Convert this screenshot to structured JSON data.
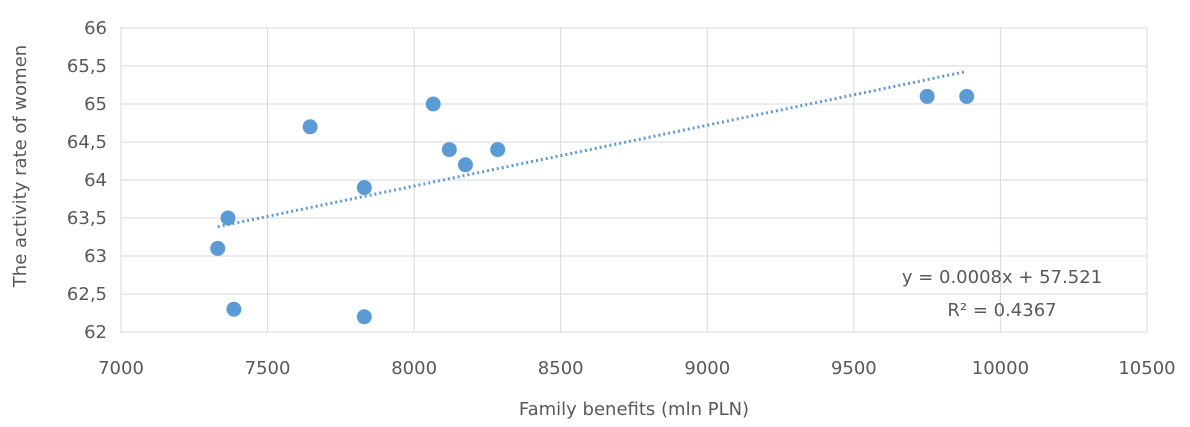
{
  "chart_data": {
    "type": "scatter",
    "title": "",
    "xlabel": "Family benefits (mln PLN)",
    "ylabel": "The activity rate of women",
    "xlim": [
      7000,
      10500
    ],
    "ylim": [
      62,
      66
    ],
    "x_ticks": [
      7000,
      7500,
      8000,
      8500,
      9000,
      9500,
      10000,
      10500
    ],
    "y_ticks": [
      62,
      62.5,
      63,
      63.5,
      64,
      64.5,
      65,
      65.5,
      66
    ],
    "x_tick_labels": [
      "7000",
      "7500",
      "8000",
      "8500",
      "9000",
      "9500",
      "10000",
      "10500"
    ],
    "y_tick_labels": [
      "62",
      "62,5",
      "63",
      "63,5",
      "64",
      "64,5",
      "65",
      "65,5",
      "66"
    ],
    "grid": "vertical and horizontal",
    "legend": "none",
    "series": [
      {
        "color": "#5b9bd5",
        "points": [
          {
            "x": 7330,
            "y": 63.1
          },
          {
            "x": 7365,
            "y": 63.5
          },
          {
            "x": 7385,
            "y": 62.3
          },
          {
            "x": 7645,
            "y": 64.7
          },
          {
            "x": 7830,
            "y": 63.9
          },
          {
            "x": 7830,
            "y": 62.2
          },
          {
            "x": 8065,
            "y": 65.0
          },
          {
            "x": 8120,
            "y": 64.4
          },
          {
            "x": 8175,
            "y": 64.2
          },
          {
            "x": 8285,
            "y": 64.4
          },
          {
            "x": 9750,
            "y": 65.1
          },
          {
            "x": 9885,
            "y": 65.1
          }
        ]
      }
    ],
    "trendline": {
      "type": "linear",
      "style": "dotted",
      "color": "#5b9bd5",
      "x_range": [
        7330,
        9885
      ],
      "equation_label": "y = 0.0008x + 57.521",
      "r2_label": "R² = 0.4367"
    }
  }
}
